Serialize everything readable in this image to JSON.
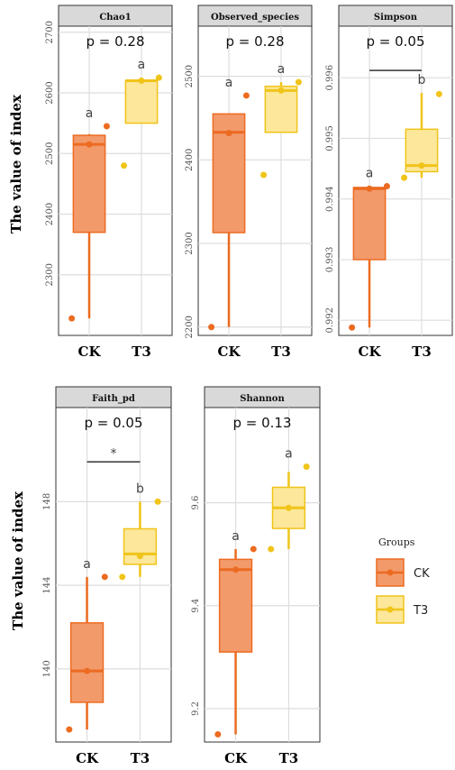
{
  "y_axis_title": "The value of index",
  "legend": {
    "title": "Groups",
    "items": [
      {
        "label": "CK",
        "fill": "#F39A6B",
        "stroke": "#EC6B21"
      },
      {
        "label": "T3",
        "fill": "#FCE79A",
        "stroke": "#F0C419"
      }
    ]
  },
  "chart_data": [
    {
      "type": "box",
      "title": "Chao1",
      "p_value": "p = 0.28",
      "categories": [
        "CK",
        "T3"
      ],
      "ylim": [
        2200,
        2710
      ],
      "yticks": [
        2300,
        2400,
        2500,
        2600,
        2700
      ],
      "series": [
        {
          "group": "CK",
          "q1": 2370,
          "median": 2515,
          "q3": 2530,
          "whisker_low": 2228,
          "whisker_high": 2532,
          "points": [
            2228,
            2515,
            2545
          ],
          "letter": "a"
        },
        {
          "group": "T3",
          "q1": 2550,
          "median": 2620,
          "q3": 2620,
          "whisker_low": 2550,
          "whisker_high": 2625,
          "points": [
            2480,
            2620,
            2625
          ],
          "letter": "a"
        }
      ]
    },
    {
      "type": "box",
      "title": "Observed_species",
      "p_value": "p = 0.28",
      "categories": [
        "CK",
        "T3"
      ],
      "ylim": [
        2190,
        2560
      ],
      "yticks": [
        2200,
        2300,
        2400,
        2500
      ],
      "series": [
        {
          "group": "CK",
          "q1": 2313,
          "median": 2433,
          "q3": 2455,
          "whisker_low": 2200,
          "whisker_high": 2455,
          "points": [
            2200,
            2432,
            2477
          ],
          "letter": "a"
        },
        {
          "group": "T3",
          "q1": 2433,
          "median": 2483,
          "q3": 2488,
          "whisker_low": 2433,
          "whisker_high": 2493,
          "points": [
            2382,
            2483,
            2493
          ],
          "letter": "a"
        }
      ]
    },
    {
      "type": "box",
      "title": "Simpson",
      "p_value": "p = 0.05",
      "categories": [
        "CK",
        "T3"
      ],
      "ylim": [
        0.99175,
        0.99685
      ],
      "yticks": [
        0.992,
        0.993,
        0.994,
        0.995,
        0.996
      ],
      "series": [
        {
          "group": "CK",
          "q1": 0.993,
          "median": 0.99417,
          "q3": 0.99419,
          "whisker_low": 0.99188,
          "whisker_high": 0.99421,
          "points": [
            0.99188,
            0.99417,
            0.99421
          ],
          "letter": "a"
        },
        {
          "group": "T3",
          "q1": 0.99445,
          "median": 0.99455,
          "q3": 0.99515,
          "whisker_low": 0.99435,
          "whisker_high": 0.99575,
          "points": [
            0.99435,
            0.99455,
            0.99573
          ],
          "letter": "b"
        }
      ],
      "bracket": {
        "y": 0.99612,
        "label": ""
      }
    },
    {
      "type": "box",
      "title": "Faith_pd",
      "p_value": "p = 0.05",
      "categories": [
        "CK",
        "T3"
      ],
      "ylim": [
        136.5,
        152.5
      ],
      "yticks": [
        140,
        144,
        148
      ],
      "series": [
        {
          "group": "CK",
          "q1": 138.4,
          "median": 139.9,
          "q3": 142.2,
          "whisker_low": 137.1,
          "whisker_high": 144.4,
          "points": [
            137.1,
            139.9,
            144.4
          ],
          "letter": "a"
        },
        {
          "group": "T3",
          "q1": 145.0,
          "median": 145.5,
          "q3": 146.7,
          "whisker_low": 144.4,
          "whisker_high": 148.0,
          "points": [
            144.4,
            145.4,
            148.0
          ],
          "letter": "b"
        }
      ],
      "bracket": {
        "y": 149.9,
        "label": "*"
      }
    },
    {
      "type": "box",
      "title": "Shannon",
      "p_value": "p = 0.13",
      "categories": [
        "CK",
        "T3"
      ],
      "ylim": [
        9.135,
        9.785
      ],
      "yticks": [
        9.2,
        9.4,
        9.6
      ],
      "series": [
        {
          "group": "CK",
          "q1": 9.31,
          "median": 9.47,
          "q3": 9.49,
          "whisker_low": 9.15,
          "whisker_high": 9.51,
          "points": [
            9.15,
            9.47,
            9.51
          ],
          "letter": "a"
        },
        {
          "group": "T3",
          "q1": 9.55,
          "median": 9.59,
          "q3": 9.63,
          "whisker_low": 9.51,
          "whisker_high": 9.66,
          "points": [
            9.51,
            9.59,
            9.67
          ],
          "letter": "a"
        }
      ]
    }
  ]
}
